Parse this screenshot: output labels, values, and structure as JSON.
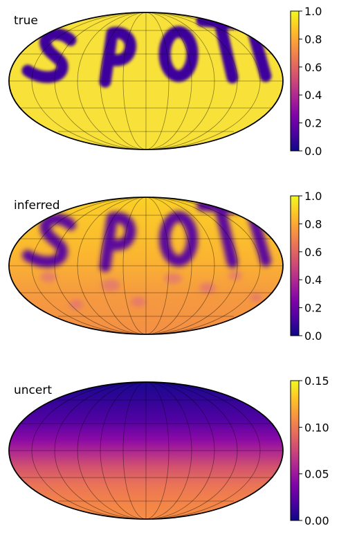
{
  "chart_data": [
    {
      "type": "heatmap",
      "projection": "mollweide",
      "panel_label": "true",
      "colormap": "plasma",
      "colorbar": {
        "range": [
          0.0,
          1.0
        ],
        "ticks": [
          "0.0",
          "0.2",
          "0.4",
          "0.6",
          "0.8",
          "1.0"
        ]
      },
      "map_text": "SPOT",
      "spot_value": 0.1,
      "background_value": 0.93,
      "grid": true
    },
    {
      "type": "heatmap",
      "projection": "mollweide",
      "panel_label": "inferred",
      "colormap": "plasma",
      "colorbar": {
        "range": [
          0.0,
          1.0
        ],
        "ticks": [
          "0.0",
          "0.2",
          "0.4",
          "0.6",
          "0.8",
          "1.0"
        ]
      },
      "map_text": "SPOT",
      "spot_value": 0.2,
      "north_value": 0.88,
      "south_value": 0.72,
      "grid": true
    },
    {
      "type": "heatmap",
      "projection": "mollweide",
      "panel_label": "uncert",
      "colormap": "plasma",
      "colorbar": {
        "range": [
          0.0,
          0.15
        ],
        "ticks": [
          "0.00",
          "0.05",
          "0.10",
          "0.15"
        ]
      },
      "north_pole_value": 0.005,
      "equator_value": 0.055,
      "south_pole_value": 0.11,
      "grid": true
    }
  ]
}
